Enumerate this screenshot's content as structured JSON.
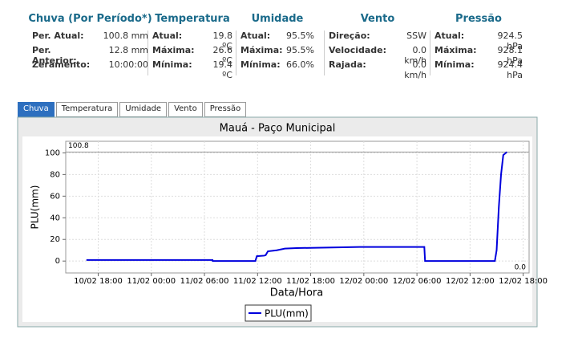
{
  "stats": [
    {
      "title": "Chuva (Por Período*)",
      "rows": [
        [
          "Per. Atual:",
          "100.8 mm"
        ],
        [
          "Per. Anterior:",
          "12.8 mm"
        ],
        [
          "Zeramento:",
          "10:00:00"
        ]
      ]
    },
    {
      "title": "Temperatura",
      "rows": [
        [
          "Atual:",
          "19.8 ºC"
        ],
        [
          "Máxima:",
          "26.6 ºC"
        ],
        [
          "Mínima:",
          "19.4 ºC"
        ]
      ]
    },
    {
      "title": "Umidade",
      "rows": [
        [
          "Atual:",
          "95.5%"
        ],
        [
          "Máxima:",
          "95.5%"
        ],
        [
          "Mínima:",
          "66.0%"
        ]
      ]
    },
    {
      "title": "Vento",
      "rows": [
        [
          "Direção:",
          "SSW"
        ],
        [
          "Velocidade:",
          "0.0 km/h"
        ],
        [
          "Rajada:",
          "0.0 km/h"
        ]
      ]
    },
    {
      "title": "Pressão",
      "rows": [
        [
          "Atual:",
          "924.5 hPa"
        ],
        [
          "Máxima:",
          "928.1 hPa"
        ],
        [
          "Mínima:",
          "924.4 hPa"
        ]
      ]
    }
  ],
  "tabs": [
    "Chuva",
    "Temperatura",
    "Umidade",
    "Vento",
    "Pressão"
  ],
  "chart_data": {
    "type": "line",
    "title": "Mauá - Paço Municipal",
    "x_label": "Data/Hora",
    "y_label": "PLU(mm)",
    "max_label": 100.8,
    "min_label": {
      "value": 0,
      "label": "0.0"
    },
    "series": [
      {
        "name": "PLU(mm)",
        "color": "#0000dd",
        "x": [
          "10/02 16:40",
          "11/02 06:55",
          "11/02 06:56",
          "11/02 11:45",
          "11/02 11:55",
          "11/02 12:45",
          "11/02 12:55",
          "11/02 13:10",
          "11/02 14:10",
          "11/02 15:05",
          "11/02 16:25",
          "11/02 23:30",
          "12/02 06:50",
          "12/02 06:55",
          "12/02 14:48",
          "12/02 15:00",
          "12/02 15:15",
          "12/02 15:30",
          "12/02 15:45",
          "12/02 16:10"
        ],
        "values": [
          1,
          1,
          0,
          0,
          4.5,
          5,
          5.5,
          9,
          10,
          11.5,
          12,
          13,
          13,
          0,
          0,
          10,
          50,
          80,
          98,
          100.8
        ]
      }
    ],
    "xlim": [
      "10/02 14:20",
      "12/02 18:40"
    ],
    "ylim": [
      -11,
      110.7
    ],
    "xticks": [
      "10/02 18:00",
      "11/02 00:00",
      "11/02 06:00",
      "11/02 12:00",
      "11/02 18:00",
      "12/02 00:00",
      "12/02 06:00",
      "12/02 12:00",
      "12/02 18:00"
    ],
    "yticks": [
      0,
      20,
      40,
      60,
      80,
      100
    ],
    "grid": true
  }
}
